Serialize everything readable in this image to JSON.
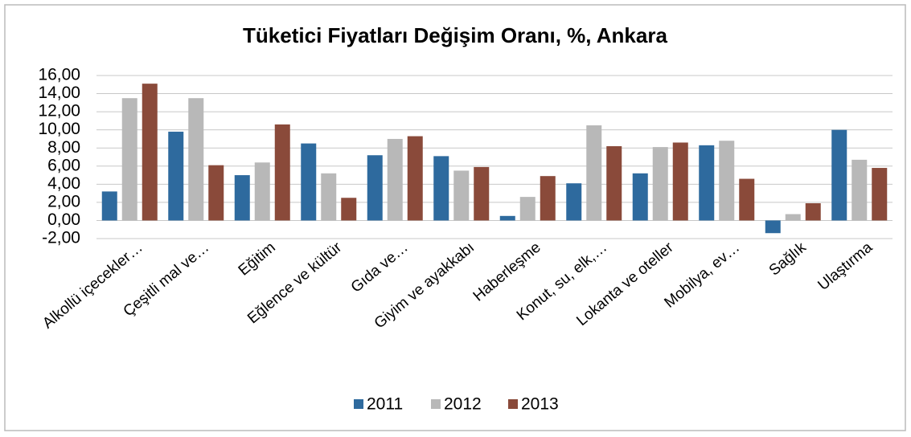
{
  "chart_data": {
    "type": "bar",
    "title": "Tüketici Fiyatları Değişim Oranı, %, Ankara",
    "categories": [
      "Alkollü içecekler…",
      "Çeşitli mal ve…",
      "Eğitim",
      "Eğlence ve kültür",
      "Gıda ve…",
      "Giyim ve ayakkabı",
      "Haberleşme",
      "Konut, su, elk,…",
      "Lokanta ve oteller",
      "Mobilya, ev…",
      "Sağlık",
      "Ulaştırma"
    ],
    "series": [
      {
        "name": "2011",
        "color": "#2e6a9e",
        "values": [
          3.2,
          9.8,
          5.0,
          8.5,
          7.2,
          7.1,
          0.5,
          4.1,
          5.2,
          8.3,
          -1.4,
          10.0
        ]
      },
      {
        "name": "2012",
        "color": "#b8b8b8",
        "values": [
          13.5,
          13.5,
          6.4,
          5.2,
          9.0,
          5.5,
          2.6,
          10.5,
          8.1,
          8.8,
          0.7,
          6.7
        ]
      },
      {
        "name": "2013",
        "color": "#8a4a3a",
        "values": [
          15.1,
          6.1,
          10.6,
          2.5,
          9.3,
          5.9,
          4.9,
          8.2,
          8.6,
          4.6,
          1.9,
          5.8
        ]
      }
    ],
    "ylim": [
      -2,
      16
    ],
    "yticks": [
      {
        "value": -2,
        "label": "-2,00"
      },
      {
        "value": 0,
        "label": "0,00"
      },
      {
        "value": 2,
        "label": "2,00"
      },
      {
        "value": 4,
        "label": "4,00"
      },
      {
        "value": 6,
        "label": "6,00"
      },
      {
        "value": 8,
        "label": "8,00"
      },
      {
        "value": 10,
        "label": "10,00"
      },
      {
        "value": 12,
        "label": "12,00"
      },
      {
        "value": 14,
        "label": "14,00"
      },
      {
        "value": 16,
        "label": "16,00"
      }
    ],
    "grid": true,
    "legend": "bottom"
  }
}
